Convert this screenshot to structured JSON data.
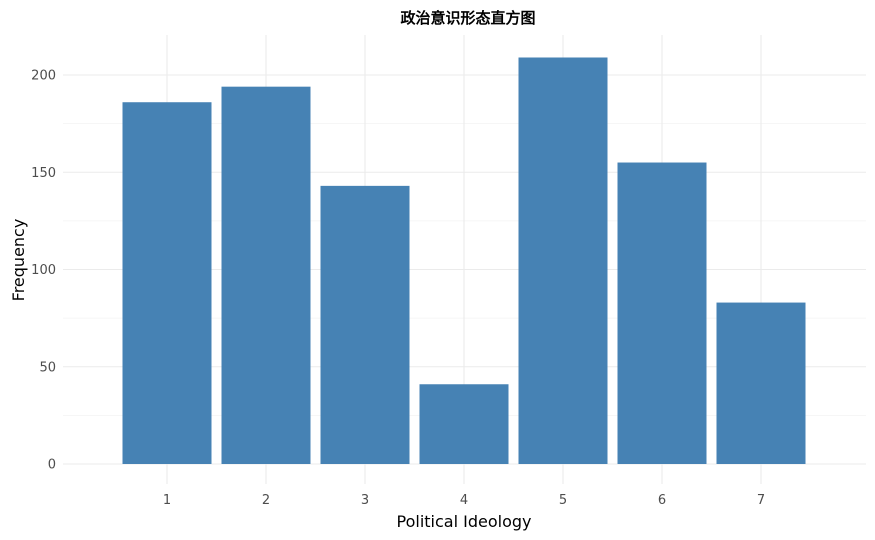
{
  "chart_data": {
    "type": "bar",
    "title": "政治意识形态直方图",
    "xlabel": "Political Ideology",
    "ylabel": "Frequency",
    "categories": [
      "1",
      "2",
      "3",
      "4",
      "5",
      "6",
      "7"
    ],
    "values": [
      186,
      194,
      143,
      41,
      209,
      155,
      83
    ],
    "ylim": [
      0,
      220
    ],
    "yticks": [
      "0",
      "50",
      "100",
      "150",
      "200"
    ],
    "grid": true,
    "bar_color": "#4682B4"
  }
}
